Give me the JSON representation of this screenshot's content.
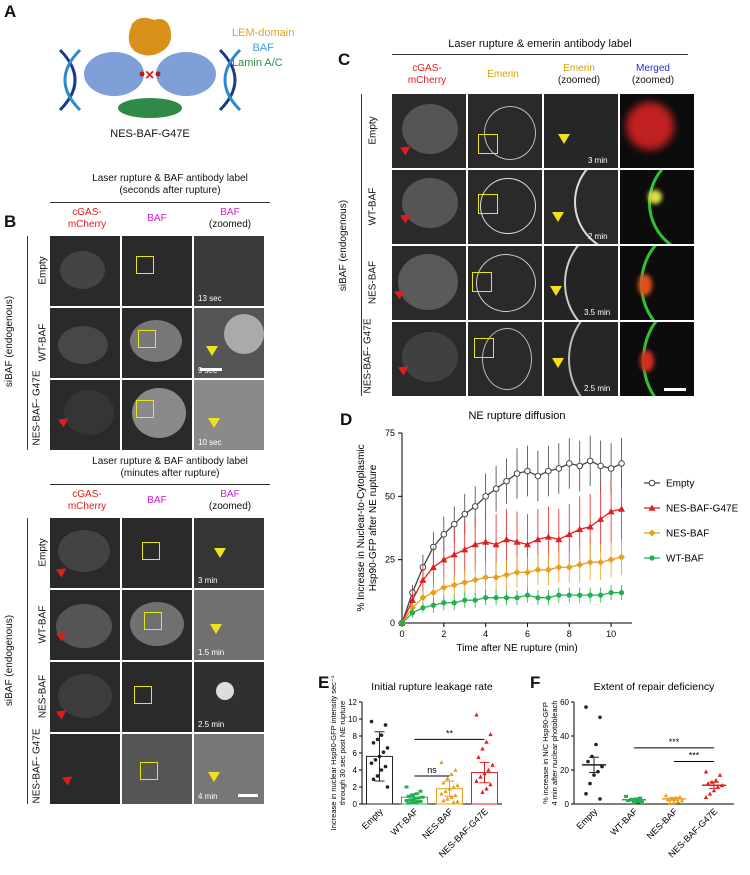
{
  "panel_letters": [
    "A",
    "B",
    "C",
    "D",
    "E",
    "F"
  ],
  "panelA": {
    "legend": [
      {
        "label": "LEM-domain",
        "color": "#e8a020"
      },
      {
        "label": "BAF",
        "color": "#3aa0e0"
      },
      {
        "label": "Lamin A/C",
        "color": "#2e8b3a"
      }
    ],
    "caption": "NES-BAF-G47E"
  },
  "panelB_top": {
    "title_line1": "Laser rupture & BAF antibody label",
    "title_line2": "(seconds after rupture)",
    "col1": [
      "cGAS-",
      "mCherry"
    ],
    "col2": "BAF",
    "col3": [
      "BAF",
      "(zoomed)"
    ],
    "rows": [
      "Empty",
      "WT-BAF",
      "NES-BAF-G47E"
    ],
    "row3_lines": [
      "NES-BAF-",
      "G47E"
    ],
    "times": [
      "13 sec",
      "9 sec",
      "10 sec"
    ],
    "side_label": "siBAF (endogenous)"
  },
  "panelB_bottom": {
    "title_line1": "Laser rupture & BAF antibody label",
    "title_line2": "(minutes after rupture)",
    "col1": [
      "cGAS-",
      "mCherry"
    ],
    "col2": "BAF",
    "col3": [
      "BAF",
      "(zoomed)"
    ],
    "rows": [
      "Empty",
      "WT-BAF",
      "NES-BAF",
      "NES-BAF-G47E"
    ],
    "row4_lines": [
      "NES-BAF-",
      "G47E"
    ],
    "times": [
      "3 min",
      "1.5 min",
      "2.5 min",
      "4 min"
    ],
    "side_label": "siBAF (endogenous)"
  },
  "panelC": {
    "title": "Laser rupture & emerin antibody label",
    "col1": [
      "cGAS-",
      "mCherry"
    ],
    "col2": "Emerin",
    "col3": [
      "Emerin",
      "(zoomed)"
    ],
    "col4": [
      "Merged",
      "(zoomed)"
    ],
    "rows": [
      "Empty",
      "WT-BAF",
      "NES-BAF",
      "NES-BAF-G47E"
    ],
    "row4_lines": [
      "NES-BAF-",
      "G47E"
    ],
    "times": [
      "3 min",
      "2 min",
      "3.5 min",
      "2.5 min"
    ],
    "side_label": "siBAF (endogenous)"
  },
  "chart_data": [
    {
      "id": "D",
      "type": "line",
      "title": "NE rupture diffusion",
      "xlabel": "Time after NE rupture (min)",
      "ylabel_lines": [
        "% Increase in Nuclear-to-Cytoplasmic",
        "Hsp90-GFP after NE rupture"
      ],
      "xlim": [
        0,
        11
      ],
      "ylim": [
        0,
        75
      ],
      "xticks": [
        0,
        2,
        4,
        6,
        8,
        10
      ],
      "yticks": [
        0,
        25,
        50,
        75
      ],
      "x": [
        0,
        0.5,
        1,
        1.5,
        2,
        2.5,
        3,
        3.5,
        4,
        4.5,
        5,
        5.5,
        6,
        6.5,
        7,
        7.5,
        8,
        8.5,
        9,
        9.5,
        10,
        10.5
      ],
      "series": [
        {
          "name": "Empty",
          "color": "#444444",
          "marker": "open-circle",
          "values": [
            0,
            12,
            22,
            30,
            35,
            39,
            43,
            46,
            50,
            53,
            56,
            59,
            60,
            58,
            60,
            61,
            63,
            62,
            64,
            62,
            61,
            63
          ],
          "err": [
            0,
            3,
            5,
            6,
            7,
            7,
            8,
            8,
            9,
            9,
            9,
            10,
            10,
            10,
            10,
            10,
            10,
            10,
            10,
            10,
            10,
            10
          ]
        },
        {
          "name": "NES-BAF-G47E",
          "color": "#e02020",
          "marker": "triangle",
          "values": [
            0,
            9,
            17,
            22,
            25,
            27,
            29,
            31,
            32,
            31,
            33,
            32,
            31,
            33,
            34,
            33,
            35,
            37,
            38,
            41,
            44,
            45
          ],
          "err": [
            0,
            4,
            6,
            8,
            9,
            10,
            11,
            11,
            12,
            12,
            12,
            12,
            12,
            12,
            12,
            12,
            12,
            13,
            13,
            13,
            13,
            13
          ]
        },
        {
          "name": "NES-BAF",
          "color": "#e8a020",
          "marker": "diamond",
          "values": [
            0,
            6,
            10,
            12,
            14,
            15,
            16,
            17,
            18,
            18,
            19,
            20,
            20,
            21,
            21,
            22,
            22,
            23,
            24,
            24,
            25,
            26
          ],
          "err": [
            0,
            2,
            3,
            4,
            5,
            5,
            5,
            6,
            6,
            6,
            6,
            6,
            6,
            6,
            6,
            6,
            6,
            7,
            7,
            7,
            7,
            7
          ]
        },
        {
          "name": "WT-BAF",
          "color": "#20b050",
          "marker": "circle",
          "values": [
            0,
            4,
            6,
            7,
            8,
            8,
            9,
            9,
            10,
            10,
            10,
            10,
            11,
            10,
            10,
            11,
            11,
            11,
            11,
            11,
            12,
            12
          ],
          "err": [
            0,
            2,
            2,
            3,
            3,
            3,
            3,
            3,
            3,
            3,
            3,
            3,
            3,
            3,
            3,
            3,
            3,
            3,
            3,
            3,
            3,
            3
          ]
        }
      ]
    },
    {
      "id": "E",
      "type": "scatter",
      "title": "Initial rupture leakage rate",
      "ylabel_lines": [
        "Increase in nuclear Hsp90-GFP intensity sec⁻¹",
        "through 30 sec post NE rupture"
      ],
      "categories": [
        "Empty",
        "WT-BAF",
        "NES-BAF",
        "NES-BAF-G47E"
      ],
      "colors": [
        "#222222",
        "#20b050",
        "#e8a020",
        "#e02020"
      ],
      "ylim": [
        0,
        12
      ],
      "yticks": [
        0,
        2,
        4,
        6,
        8,
        10,
        12
      ],
      "means": [
        5.6,
        0.8,
        1.8,
        3.7
      ],
      "err": [
        2.9,
        0.4,
        0.9,
        1.2
      ],
      "points": [
        [
          9.7,
          9.3,
          8.1,
          7.6,
          7.2,
          6.6,
          6.1,
          5.6,
          5.2,
          4.8,
          4.4,
          4.0,
          3.3,
          2.9,
          2.0
        ],
        [
          2.0,
          1.5,
          1.2,
          1.0,
          0.9,
          0.8,
          0.7,
          0.6,
          0.5,
          0.4,
          0.3,
          0.2,
          0.2,
          0.1
        ],
        [
          4.9,
          4.0,
          3.5,
          3.0,
          2.5,
          2.2,
          2.0,
          1.8,
          1.5,
          1.2,
          1.0,
          0.8,
          0.6,
          0.4,
          0.3,
          0.2
        ],
        [
          10.5,
          8.2,
          7.3,
          6.5,
          5.5,
          4.6,
          4.0,
          3.6,
          3.2,
          2.7,
          2.3,
          1.8,
          1.4
        ]
      ],
      "significance": [
        {
          "from": 1,
          "to": 2,
          "label": "ns",
          "y": 3.3
        },
        {
          "from": 1,
          "to": 3,
          "label": "**",
          "y": 7.6
        }
      ]
    },
    {
      "id": "F",
      "type": "scatter",
      "title": "Extent of repair deficiency",
      "ylabel_lines": [
        "% increase in N/C Hsp90-GFP",
        "4 min after nuclear photobleach"
      ],
      "categories": [
        "Empty",
        "WT-BAF",
        "NES-BAF",
        "NES-BAF-G47E"
      ],
      "colors": [
        "#222222",
        "#20b050",
        "#e8a020",
        "#e02020"
      ],
      "ylim": [
        0,
        60
      ],
      "yticks": [
        0,
        20,
        40,
        60
      ],
      "means": [
        23,
        2.5,
        3,
        11
      ],
      "err": [
        4.5,
        0.8,
        0.9,
        1.8
      ],
      "points": [
        [
          57,
          51,
          35,
          28,
          25,
          22,
          19,
          17,
          12,
          6,
          3
        ],
        [
          4.5,
          3.5,
          3,
          2.5,
          2,
          1.5,
          1.2,
          0.8
        ],
        [
          5,
          4,
          3.5,
          3,
          2.5,
          2,
          1.5,
          1,
          0.5
        ],
        [
          19,
          17,
          14,
          13,
          12,
          11,
          10,
          8,
          6,
          4
        ]
      ],
      "significance": [
        {
          "from": 1,
          "to": 3,
          "label": "***",
          "y": 33
        },
        {
          "from": 2,
          "to": 3,
          "label": "***",
          "y": 25
        }
      ]
    }
  ]
}
